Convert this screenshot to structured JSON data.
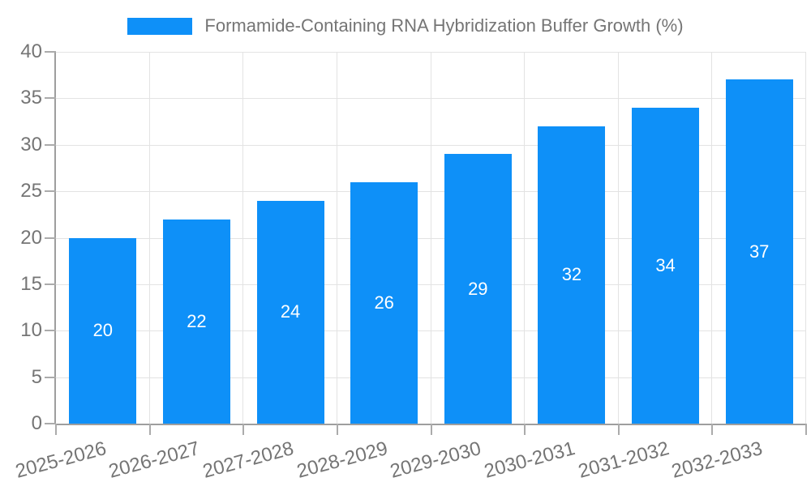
{
  "chart_data": {
    "type": "bar",
    "title": "Formamide-Containing RNA Hybridization Buffer Growth (%)",
    "categories": [
      "2025-2026",
      "2026-2027",
      "2027-2028",
      "2028-2029",
      "2029-2030",
      "2030-2031",
      "2031-2032",
      "2032-2033"
    ],
    "values": [
      20,
      22,
      24,
      26,
      29,
      32,
      34,
      37
    ],
    "value_labels": [
      "20",
      "22",
      "24",
      "26",
      "29",
      "32",
      "34",
      "37"
    ],
    "xlabel": "",
    "ylabel": "",
    "ylim": [
      0,
      40
    ],
    "yticks": [
      0,
      5,
      10,
      15,
      20,
      25,
      30,
      35,
      40
    ],
    "grid": true,
    "legend_position": "top-center",
    "bar_color": "#0e90f8",
    "value_label_color": "#ffffff",
    "tick_text_color": "#757575",
    "grid_color": "#e3e3e3",
    "axis_color": "#9e9e9e",
    "background_color": "#ffffff"
  }
}
